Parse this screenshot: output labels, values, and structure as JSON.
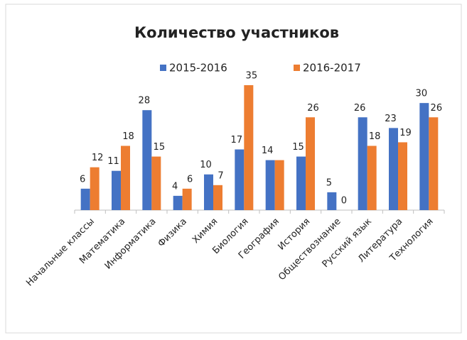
{
  "chart_data": {
    "type": "bar",
    "title": "Количество  участников",
    "categories": [
      "Начальные классы",
      "Математика",
      "Информатика",
      "Физика",
      "Химия",
      "Биология",
      "География",
      "История",
      "Обществознание",
      "Русский язык",
      "Литература",
      "Технология"
    ],
    "series": [
      {
        "name": "2015-2016",
        "color": "#4472c4",
        "values": [
          6,
          11,
          28,
          4,
          10,
          17,
          14,
          15,
          5,
          26,
          23,
          30
        ]
      },
      {
        "name": "2016-2017",
        "color": "#ed7d31",
        "values": [
          12,
          18,
          15,
          6,
          7,
          35,
          14,
          26,
          0,
          18,
          19,
          26
        ],
        "value_labels": [
          "12",
          "18",
          "15",
          "6",
          "7",
          "35",
          null,
          "26",
          "0",
          "18",
          "19",
          "26"
        ]
      }
    ],
    "ylim": [
      0,
      35
    ],
    "legend": "top"
  }
}
